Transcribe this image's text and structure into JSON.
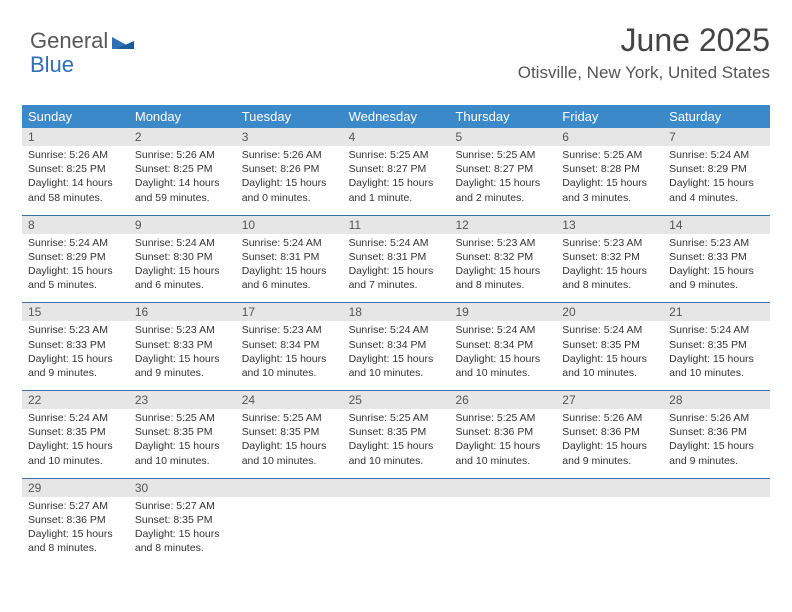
{
  "logo": {
    "part1": "General",
    "part2": "Blue"
  },
  "title": "June 2025",
  "subtitle": "Otisville, New York, United States",
  "colors": {
    "headerBg": "#3b89c9",
    "headerText": "#ffffff",
    "dayNumBg": "#e6e6e6",
    "weekBorder": "#3b6fa5",
    "bodyText": "#333333",
    "logoGray": "#58585a",
    "logoBlue": "#2f6fb3"
  },
  "weekdays": [
    "Sunday",
    "Monday",
    "Tuesday",
    "Wednesday",
    "Thursday",
    "Friday",
    "Saturday"
  ],
  "weeks": [
    [
      {
        "n": "1",
        "sr": "5:26 AM",
        "ss": "8:25 PM",
        "dl": "14 hours and 58 minutes."
      },
      {
        "n": "2",
        "sr": "5:26 AM",
        "ss": "8:25 PM",
        "dl": "14 hours and 59 minutes."
      },
      {
        "n": "3",
        "sr": "5:26 AM",
        "ss": "8:26 PM",
        "dl": "15 hours and 0 minutes."
      },
      {
        "n": "4",
        "sr": "5:25 AM",
        "ss": "8:27 PM",
        "dl": "15 hours and 1 minute."
      },
      {
        "n": "5",
        "sr": "5:25 AM",
        "ss": "8:27 PM",
        "dl": "15 hours and 2 minutes."
      },
      {
        "n": "6",
        "sr": "5:25 AM",
        "ss": "8:28 PM",
        "dl": "15 hours and 3 minutes."
      },
      {
        "n": "7",
        "sr": "5:24 AM",
        "ss": "8:29 PM",
        "dl": "15 hours and 4 minutes."
      }
    ],
    [
      {
        "n": "8",
        "sr": "5:24 AM",
        "ss": "8:29 PM",
        "dl": "15 hours and 5 minutes."
      },
      {
        "n": "9",
        "sr": "5:24 AM",
        "ss": "8:30 PM",
        "dl": "15 hours and 6 minutes."
      },
      {
        "n": "10",
        "sr": "5:24 AM",
        "ss": "8:31 PM",
        "dl": "15 hours and 6 minutes."
      },
      {
        "n": "11",
        "sr": "5:24 AM",
        "ss": "8:31 PM",
        "dl": "15 hours and 7 minutes."
      },
      {
        "n": "12",
        "sr": "5:23 AM",
        "ss": "8:32 PM",
        "dl": "15 hours and 8 minutes."
      },
      {
        "n": "13",
        "sr": "5:23 AM",
        "ss": "8:32 PM",
        "dl": "15 hours and 8 minutes."
      },
      {
        "n": "14",
        "sr": "5:23 AM",
        "ss": "8:33 PM",
        "dl": "15 hours and 9 minutes."
      }
    ],
    [
      {
        "n": "15",
        "sr": "5:23 AM",
        "ss": "8:33 PM",
        "dl": "15 hours and 9 minutes."
      },
      {
        "n": "16",
        "sr": "5:23 AM",
        "ss": "8:33 PM",
        "dl": "15 hours and 9 minutes."
      },
      {
        "n": "17",
        "sr": "5:23 AM",
        "ss": "8:34 PM",
        "dl": "15 hours and 10 minutes."
      },
      {
        "n": "18",
        "sr": "5:24 AM",
        "ss": "8:34 PM",
        "dl": "15 hours and 10 minutes."
      },
      {
        "n": "19",
        "sr": "5:24 AM",
        "ss": "8:34 PM",
        "dl": "15 hours and 10 minutes."
      },
      {
        "n": "20",
        "sr": "5:24 AM",
        "ss": "8:35 PM",
        "dl": "15 hours and 10 minutes."
      },
      {
        "n": "21",
        "sr": "5:24 AM",
        "ss": "8:35 PM",
        "dl": "15 hours and 10 minutes."
      }
    ],
    [
      {
        "n": "22",
        "sr": "5:24 AM",
        "ss": "8:35 PM",
        "dl": "15 hours and 10 minutes."
      },
      {
        "n": "23",
        "sr": "5:25 AM",
        "ss": "8:35 PM",
        "dl": "15 hours and 10 minutes."
      },
      {
        "n": "24",
        "sr": "5:25 AM",
        "ss": "8:35 PM",
        "dl": "15 hours and 10 minutes."
      },
      {
        "n": "25",
        "sr": "5:25 AM",
        "ss": "8:35 PM",
        "dl": "15 hours and 10 minutes."
      },
      {
        "n": "26",
        "sr": "5:25 AM",
        "ss": "8:36 PM",
        "dl": "15 hours and 10 minutes."
      },
      {
        "n": "27",
        "sr": "5:26 AM",
        "ss": "8:36 PM",
        "dl": "15 hours and 9 minutes."
      },
      {
        "n": "28",
        "sr": "5:26 AM",
        "ss": "8:36 PM",
        "dl": "15 hours and 9 minutes."
      }
    ],
    [
      {
        "n": "29",
        "sr": "5:27 AM",
        "ss": "8:36 PM",
        "dl": "15 hours and 8 minutes."
      },
      {
        "n": "30",
        "sr": "5:27 AM",
        "ss": "8:35 PM",
        "dl": "15 hours and 8 minutes."
      },
      null,
      null,
      null,
      null,
      null
    ]
  ],
  "labels": {
    "sunrise": "Sunrise:",
    "sunset": "Sunset:",
    "daylight": "Daylight:"
  }
}
